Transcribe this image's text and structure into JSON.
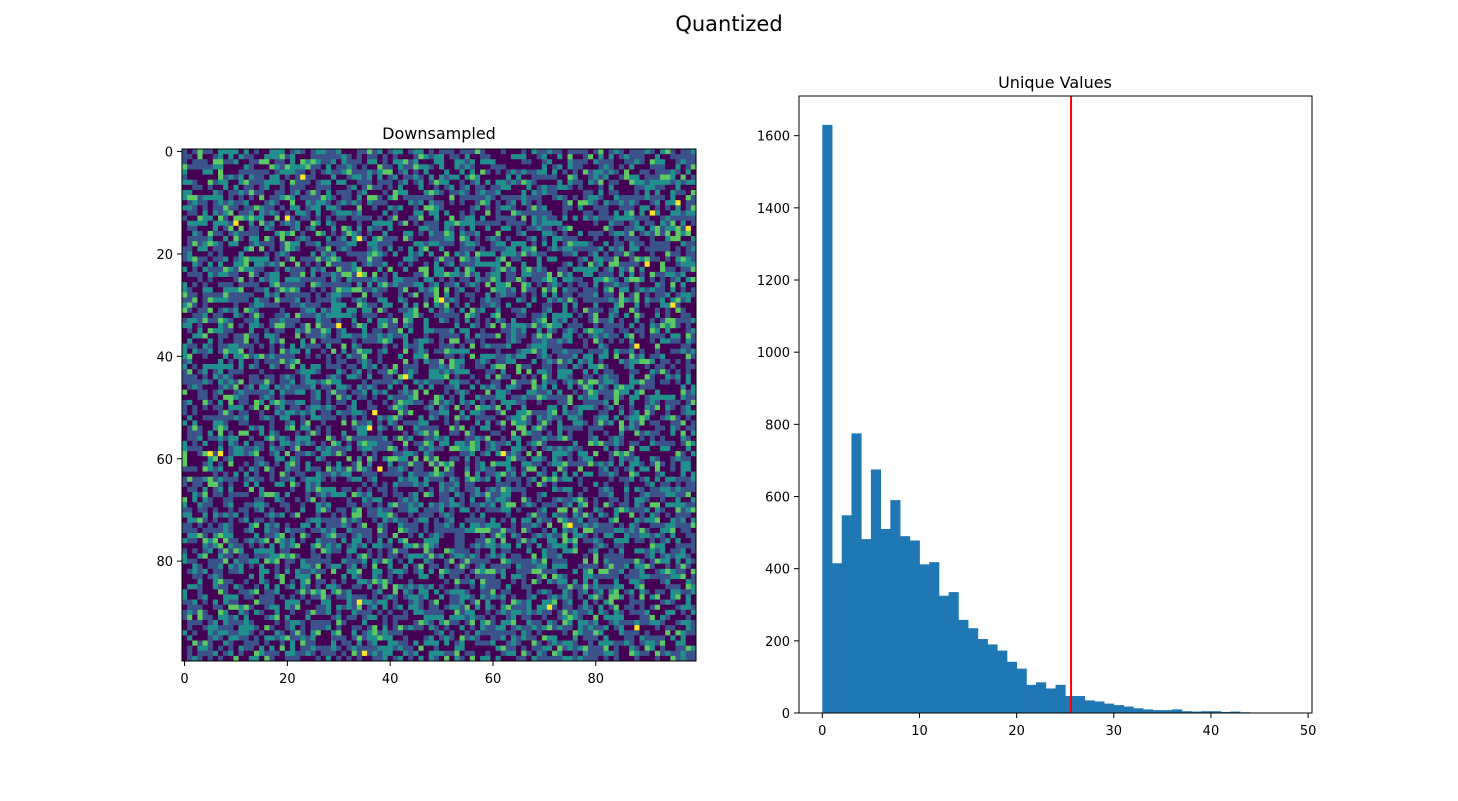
{
  "figure": {
    "suptitle": "Quantized"
  },
  "chart_data": [
    {
      "type": "heatmap",
      "title": "Downsampled",
      "xlabel": "",
      "ylabel": "",
      "grid_size": [
        100,
        100
      ],
      "xlim": [
        -0.5,
        99.5
      ],
      "ylim": [
        99.5,
        -0.5
      ],
      "xticks": [
        0,
        20,
        40,
        60,
        80
      ],
      "yticks": [
        0,
        20,
        40,
        60,
        80
      ],
      "colormap": "viridis",
      "colors": [
        "#440154",
        "#3b528b",
        "#21908c",
        "#5dc963",
        "#fde725"
      ],
      "bright_cells": [
        [
          23,
          5
        ],
        [
          34,
          17
        ],
        [
          34,
          24
        ],
        [
          37,
          51
        ],
        [
          38,
          62
        ],
        [
          36,
          54
        ],
        [
          90,
          22
        ],
        [
          91,
          12
        ],
        [
          88,
          38
        ],
        [
          34,
          88
        ],
        [
          71,
          89
        ],
        [
          35,
          98
        ],
        [
          43,
          44
        ],
        [
          96,
          10
        ],
        [
          98,
          15
        ],
        [
          20,
          13
        ],
        [
          5,
          59
        ],
        [
          7,
          59
        ],
        [
          75,
          73
        ],
        [
          95,
          30
        ],
        [
          88,
          93
        ],
        [
          10,
          14
        ],
        [
          50,
          29
        ],
        [
          30,
          34
        ],
        [
          62,
          59
        ]
      ]
    },
    {
      "type": "bar",
      "title": "Unique Values",
      "xlabel": "",
      "ylabel": "",
      "bin_edges_start": 0,
      "bin_width": 1.0,
      "values": [
        1630,
        415,
        548,
        775,
        482,
        675,
        510,
        590,
        490,
        478,
        412,
        418,
        325,
        335,
        258,
        235,
        205,
        190,
        173,
        142,
        123,
        78,
        85,
        68,
        78,
        47,
        47,
        35,
        32,
        26,
        22,
        18,
        13,
        10,
        8,
        8,
        10,
        5,
        4,
        5,
        5,
        3,
        4,
        2,
        1,
        1,
        1,
        1
      ],
      "xlim": [
        -2.4,
        50.4
      ],
      "ylim": [
        0,
        1710
      ],
      "xticks": [
        0,
        10,
        20,
        30,
        40,
        50
      ],
      "yticks": [
        0,
        200,
        400,
        600,
        800,
        1000,
        1200,
        1400,
        1600
      ],
      "bar_color": "#1f77b4",
      "vline": {
        "x": 25.6,
        "color": "#ff0000"
      }
    }
  ]
}
